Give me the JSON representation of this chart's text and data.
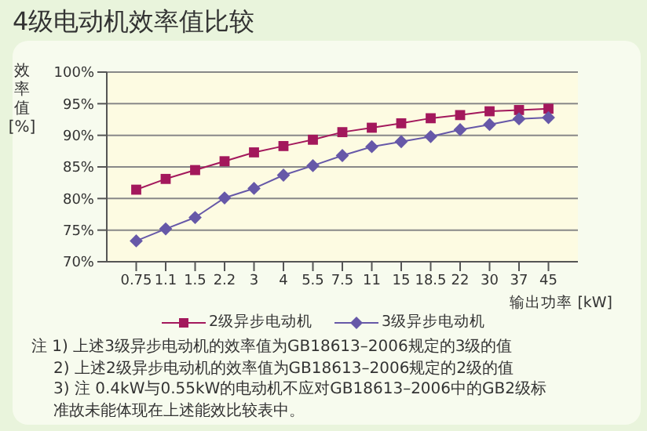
{
  "chart_data": {
    "type": "line",
    "title": "4级电动机效率值比较",
    "ylabel": "效率值 [%]",
    "xlabel": "输出功率 [kW]",
    "categories": [
      "0.75",
      "1.1",
      "1.5",
      "2.2",
      "3",
      "4",
      "5.5",
      "7.5",
      "11",
      "15",
      "18.5",
      "22",
      "30",
      "37",
      "45"
    ],
    "series": [
      {
        "name": "2级异步电动机",
        "color": "#a3185c",
        "marker": "square",
        "values": [
          81.4,
          83.1,
          84.5,
          85.9,
          87.3,
          88.3,
          89.3,
          90.5,
          91.2,
          91.9,
          92.7,
          93.2,
          93.8,
          94.0,
          94.2
        ]
      },
      {
        "name": "3级异步电动机",
        "color": "#6658a8",
        "marker": "diamond",
        "values": [
          73.3,
          75.2,
          77.0,
          80.1,
          81.6,
          83.7,
          85.2,
          86.8,
          88.2,
          89.0,
          89.8,
          90.9,
          91.7,
          92.6,
          92.8
        ]
      }
    ],
    "ylim": [
      70,
      100
    ],
    "yticks": [
      {
        "value": 70,
        "label": "70%"
      },
      {
        "value": 75,
        "label": "75%"
      },
      {
        "value": 80,
        "label": "80%"
      },
      {
        "value": 85,
        "label": "85%"
      },
      {
        "value": 90,
        "label": "90%"
      },
      {
        "value": 95,
        "label": "95%"
      },
      {
        "value": 100,
        "label": "100%"
      }
    ],
    "grid": "y",
    "legend": "bottom",
    "annotations": [
      "注 1) 上述3级异步电动机的效率值为GB18613–2006规定的3级的值",
      "2) 上述2级异步电动机的效率值为GB18613–2006规定的2级的值",
      "3) 注 0.4kW与0.55kW的电动机不应对GB18613–2006中的GB2级标准故未能体现在上述能效比较表中。"
    ]
  }
}
